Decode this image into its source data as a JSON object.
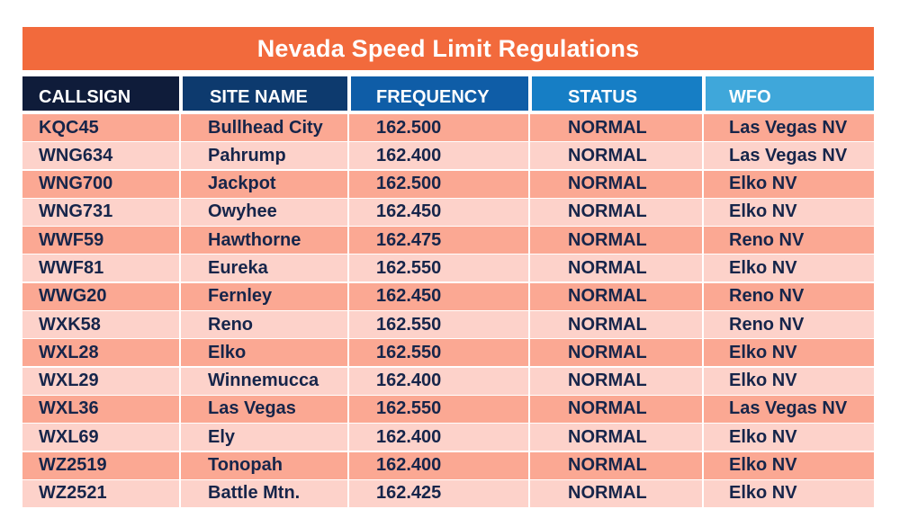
{
  "title": "Nevada Speed Limit Regulations",
  "headers": [
    "CALLSIGN",
    "SITE NAME",
    "FREQUENCY",
    "STATUS",
    "WFO"
  ],
  "rows": [
    [
      "KQC45",
      "Bullhead City",
      "162.500",
      "NORMAL",
      "Las Vegas NV"
    ],
    [
      "WNG634",
      "Pahrump",
      "162.400",
      "NORMAL",
      "Las Vegas NV"
    ],
    [
      "WNG700",
      "Jackpot",
      "162.500",
      "NORMAL",
      "Elko NV"
    ],
    [
      "WNG731",
      "Owyhee",
      "162.450",
      "NORMAL",
      "Elko NV"
    ],
    [
      "WWF59",
      "Hawthorne",
      "162.475",
      "NORMAL",
      "Reno NV"
    ],
    [
      "WWF81",
      "Eureka",
      "162.550",
      "NORMAL",
      "Elko NV"
    ],
    [
      "WWG20",
      "Fernley",
      "162.450",
      "NORMAL",
      "Reno NV"
    ],
    [
      "WXK58",
      "Reno",
      "162.550",
      "NORMAL",
      "Reno NV"
    ],
    [
      "WXL28",
      "Elko",
      "162.550",
      "NORMAL",
      "Elko NV"
    ],
    [
      "WXL29",
      "Winnemucca",
      "162.400",
      "NORMAL",
      "Elko NV"
    ],
    [
      "WXL36",
      "Las Vegas",
      "162.550",
      "NORMAL",
      "Las Vegas NV"
    ],
    [
      "WXL69",
      "Ely",
      "162.400",
      "NORMAL",
      "Elko NV"
    ],
    [
      "WZ2519",
      "Tonopah",
      "162.400",
      "NORMAL",
      "Elko NV"
    ],
    [
      "WZ2521",
      "Battle Mtn.",
      "162.425",
      "NORMAL",
      "Elko NV"
    ]
  ],
  "colors": {
    "title_bg": "#f26a3c",
    "header_bg": [
      "#0f1c3a",
      "#0d3a6e",
      "#0f5da7",
      "#167ec5",
      "#3fa7da"
    ],
    "row_odd": "#fba893",
    "row_even": "#fdd2ca",
    "text": "#16254a"
  }
}
